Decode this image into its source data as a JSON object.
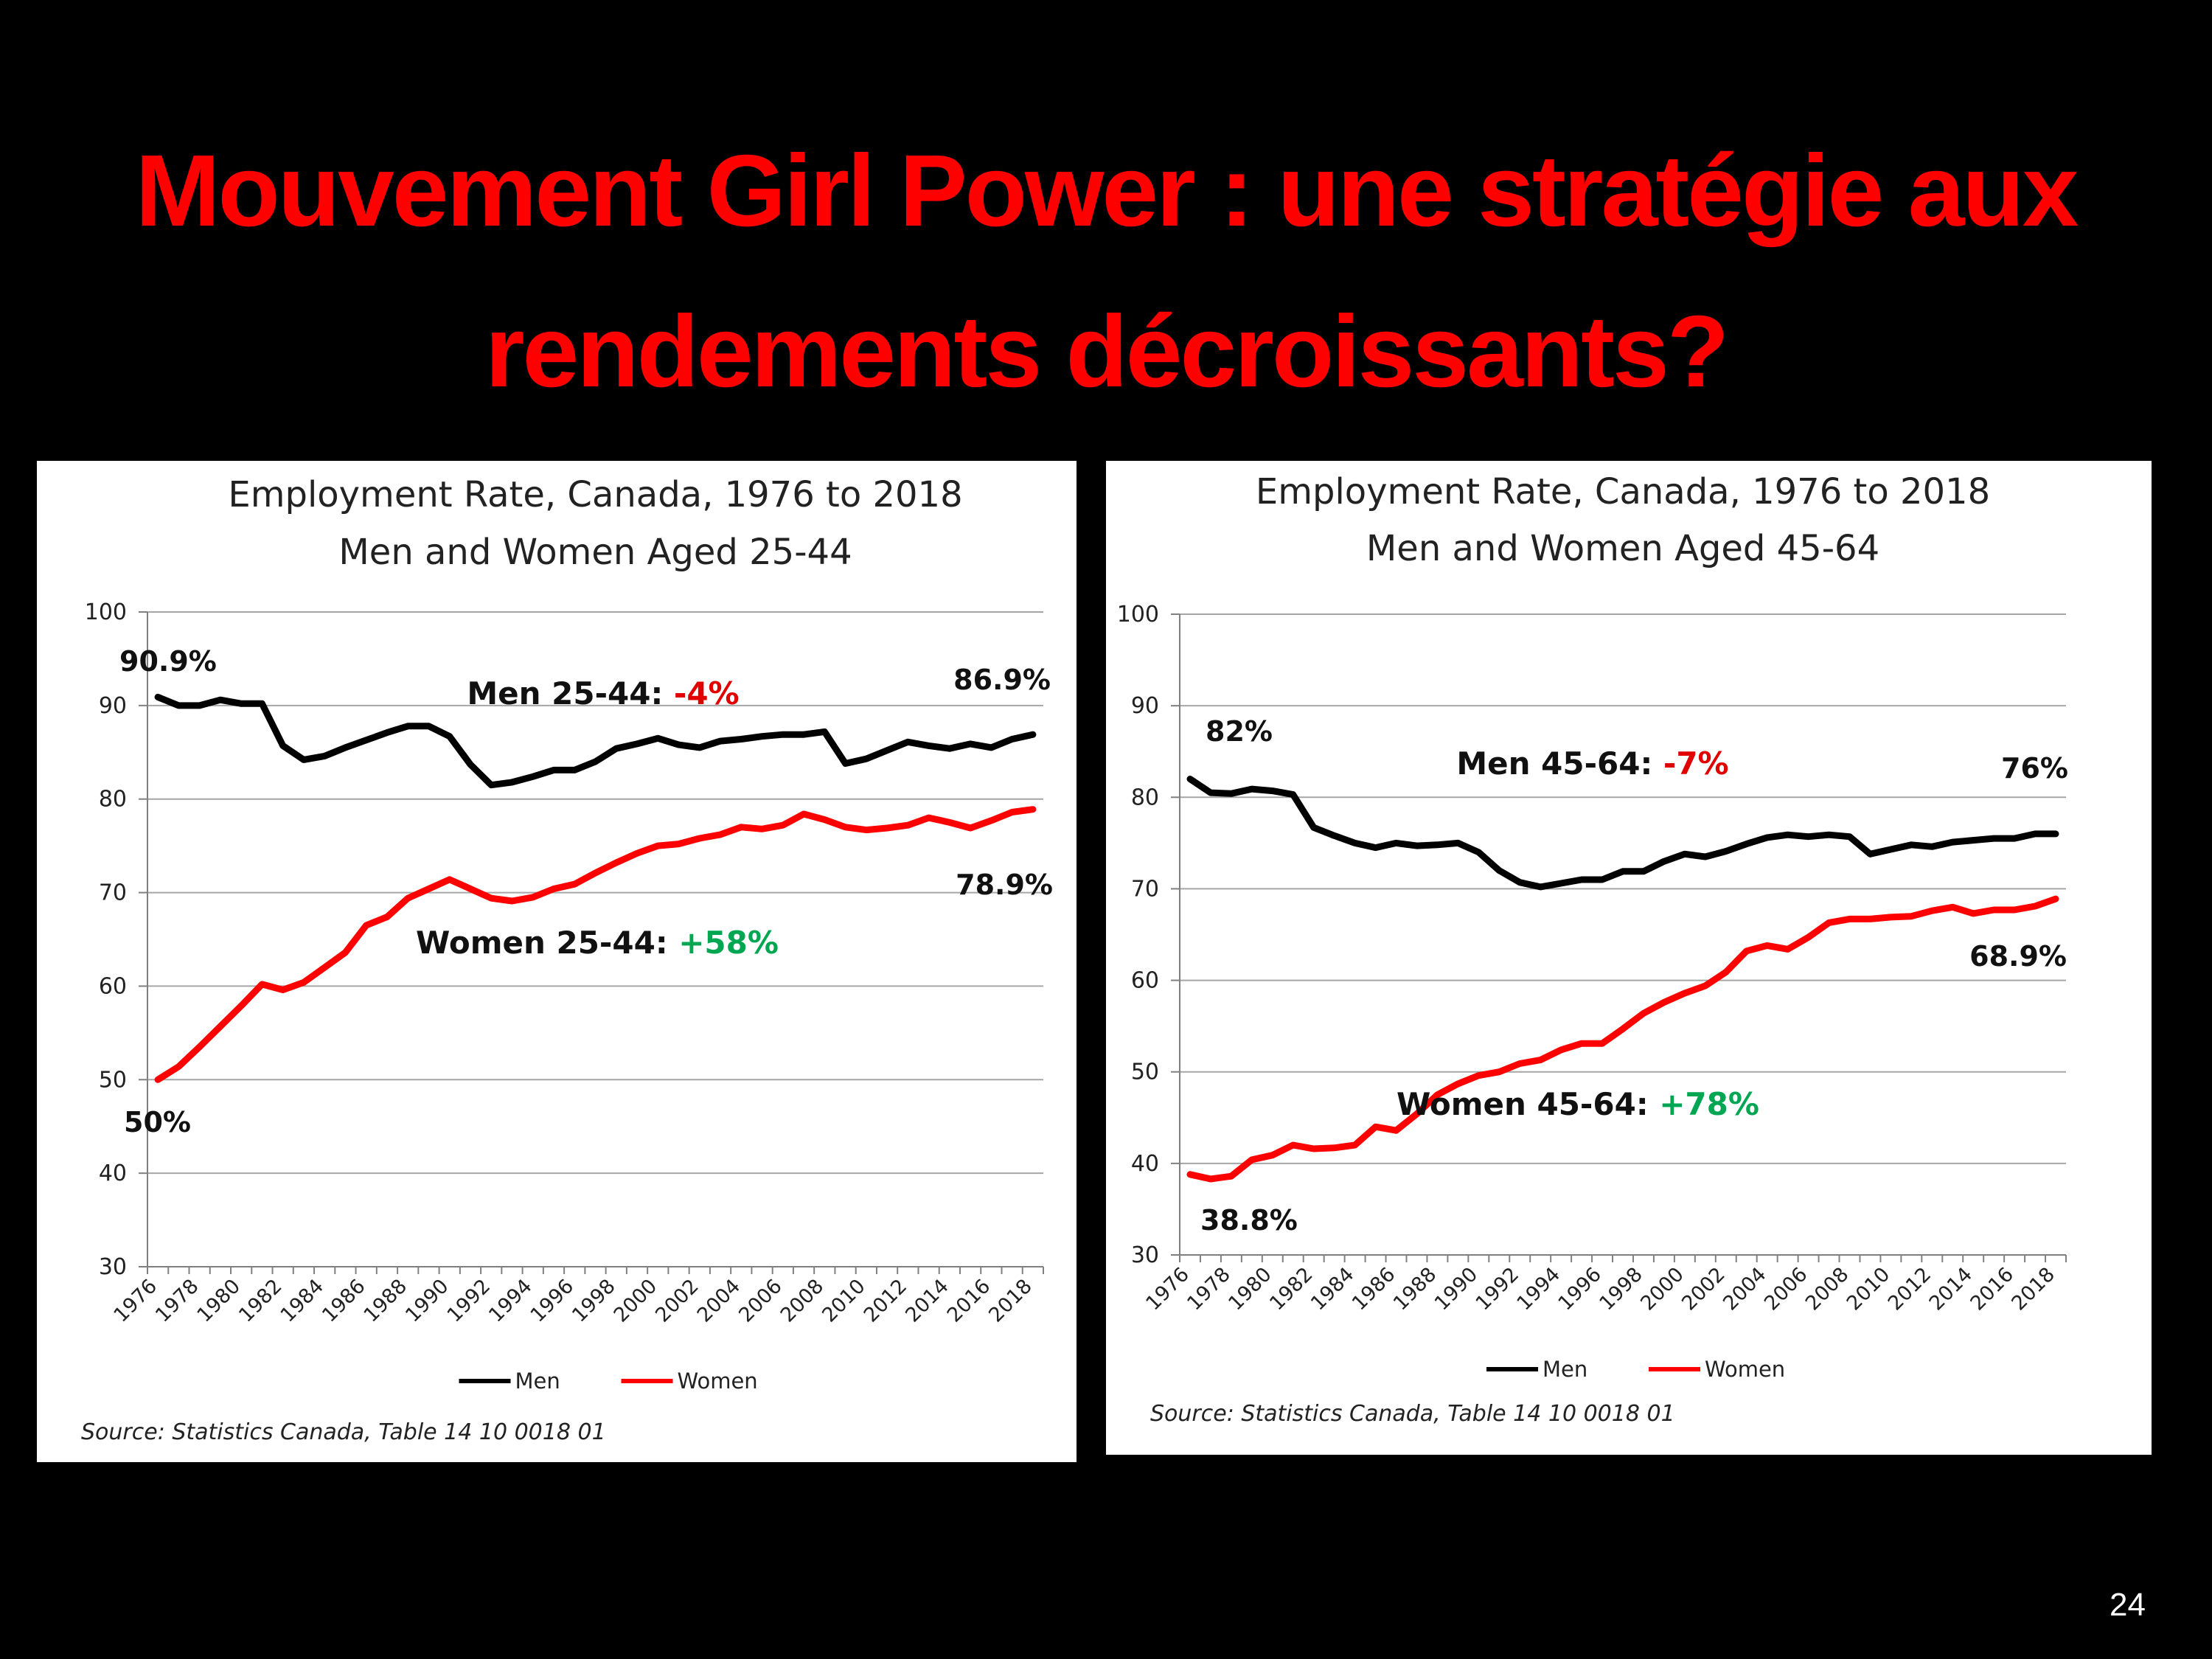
{
  "slide": {
    "title_line1": "Mouvement Girl Power : une stratégie aux",
    "title_line2": "rendements décroissants?",
    "page_number": "24",
    "title_color": "#ff0000",
    "background": "#000000"
  },
  "colors": {
    "men": "#000000",
    "women": "#ff0000",
    "negative": "#e00000",
    "positive": "#00a651",
    "grid": "#a6a6a6"
  },
  "chart_data": [
    {
      "type": "line",
      "title": "Employment Rate, Canada, 1976 to 2018",
      "subtitle": "Men and Women Aged 25-44",
      "source": "Source: Statistics Canada, Table 14 10 0018 01",
      "ylim": [
        30,
        100
      ],
      "yticks": [
        30,
        40,
        50,
        60,
        70,
        80,
        90,
        100
      ],
      "grid": true,
      "legend_position": "bottom",
      "x": [
        1976,
        1977,
        1978,
        1979,
        1980,
        1981,
        1982,
        1983,
        1984,
        1985,
        1986,
        1987,
        1988,
        1989,
        1990,
        1991,
        1992,
        1993,
        1994,
        1995,
        1996,
        1997,
        1998,
        1999,
        2000,
        2001,
        2002,
        2003,
        2004,
        2005,
        2006,
        2007,
        2008,
        2009,
        2010,
        2011,
        2012,
        2013,
        2014,
        2015,
        2016,
        2017,
        2018
      ],
      "xtick_labels": [
        "1976",
        "1978",
        "1980",
        "1982",
        "1984",
        "1986",
        "1988",
        "1990",
        "1992",
        "1994",
        "1996",
        "1998",
        "2000",
        "2002",
        "2004",
        "2006",
        "2008",
        "2010",
        "2012",
        "2014",
        "2016",
        "2018"
      ],
      "series": [
        {
          "name": "Men",
          "color": "#000000",
          "values": [
            90.9,
            90.0,
            90.0,
            90.6,
            90.2,
            90.2,
            85.7,
            84.2,
            84.6,
            85.5,
            86.3,
            87.1,
            87.8,
            87.8,
            86.7,
            83.7,
            81.5,
            81.8,
            82.4,
            83.1,
            83.1,
            84.0,
            85.4,
            85.9,
            86.5,
            85.8,
            85.5,
            86.2,
            86.4,
            86.7,
            86.9,
            86.9,
            87.2,
            83.8,
            84.3,
            85.2,
            86.1,
            85.7,
            85.4,
            85.9,
            85.5,
            86.4,
            86.9
          ]
        },
        {
          "name": "Women",
          "color": "#ff0000",
          "values": [
            50.0,
            51.4,
            53.5,
            55.7,
            57.9,
            60.2,
            59.6,
            60.4,
            62.0,
            63.6,
            66.5,
            67.4,
            69.4,
            70.4,
            71.4,
            70.4,
            69.4,
            69.1,
            69.5,
            70.4,
            70.9,
            72.1,
            73.2,
            74.2,
            75.0,
            75.2,
            75.8,
            76.2,
            77.0,
            76.8,
            77.2,
            78.4,
            77.8,
            77.0,
            76.7,
            76.9,
            77.2,
            78.0,
            77.5,
            76.9,
            77.7,
            78.6,
            78.9
          ]
        }
      ],
      "annotations": {
        "men_start": "90.9%",
        "men_end": "86.9%",
        "women_start": "50%",
        "women_end": "78.9%",
        "men_label": "Men 25-44: ",
        "men_change": "-4%",
        "women_label": "Women 25-44: ",
        "women_change": "+58%"
      }
    },
    {
      "type": "line",
      "title": "Employment Rate, Canada, 1976 to 2018",
      "subtitle": "Men and Women Aged 45-64",
      "source": "Source: Statistics Canada, Table 14 10 0018 01",
      "ylim": [
        30,
        100
      ],
      "yticks": [
        30,
        40,
        50,
        60,
        70,
        80,
        90,
        100
      ],
      "grid": true,
      "legend_position": "bottom",
      "x": [
        1976,
        1977,
        1978,
        1979,
        1980,
        1981,
        1982,
        1983,
        1984,
        1985,
        1986,
        1987,
        1988,
        1989,
        1990,
        1991,
        1992,
        1993,
        1994,
        1995,
        1996,
        1997,
        1998,
        1999,
        2000,
        2001,
        2002,
        2003,
        2004,
        2005,
        2006,
        2007,
        2008,
        2009,
        2010,
        2011,
        2012,
        2013,
        2014,
        2015,
        2016,
        2017,
        2018
      ],
      "xtick_labels": [
        "1976",
        "1978",
        "1980",
        "1982",
        "1984",
        "1986",
        "1988",
        "1990",
        "1992",
        "1994",
        "1996",
        "1998",
        "2000",
        "2002",
        "2004",
        "2006",
        "2008",
        "2010",
        "2012",
        "2014",
        "2016",
        "2018"
      ],
      "series": [
        {
          "name": "Men",
          "color": "#000000",
          "values": [
            82.0,
            80.5,
            80.4,
            80.9,
            80.7,
            80.3,
            76.7,
            75.8,
            75.0,
            74.5,
            75.0,
            74.7,
            74.8,
            75.0,
            74.0,
            72.0,
            70.7,
            70.2,
            70.6,
            71.0,
            71.0,
            71.9,
            71.9,
            73.0,
            73.8,
            73.5,
            74.1,
            74.9,
            75.6,
            75.9,
            75.7,
            75.9,
            75.7,
            73.8,
            74.3,
            74.8,
            74.6,
            75.1,
            75.3,
            75.5,
            75.5,
            76.0,
            76.0
          ]
        },
        {
          "name": "Women",
          "color": "#ff0000",
          "values": [
            38.8,
            38.3,
            38.6,
            40.4,
            40.9,
            42.0,
            41.6,
            41.7,
            42.0,
            44.0,
            43.6,
            45.4,
            47.5,
            48.7,
            49.6,
            50.0,
            50.9,
            51.3,
            52.4,
            53.1,
            53.1,
            54.7,
            56.4,
            57.6,
            58.6,
            59.4,
            60.9,
            63.2,
            63.8,
            63.4,
            64.7,
            66.3,
            66.7,
            66.7,
            66.9,
            67.0,
            67.6,
            68.0,
            67.3,
            67.7,
            67.7,
            68.1,
            68.9
          ]
        }
      ],
      "annotations": {
        "men_start": "82%",
        "men_end": "76%",
        "women_start": "38.8%",
        "women_end": "68.9%",
        "men_label": "Men 45-64: ",
        "men_change": "-7%",
        "women_label": "Women 45-64: ",
        "women_change": "+78%"
      }
    }
  ]
}
